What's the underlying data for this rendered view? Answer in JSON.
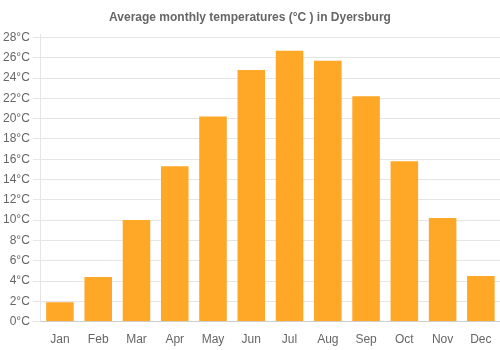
{
  "chart_data": {
    "type": "bar",
    "title": "Average monthly temperatures (°C ) in Dyersburg",
    "categories": [
      "Jan",
      "Feb",
      "Mar",
      "Apr",
      "May",
      "Jun",
      "Jul",
      "Aug",
      "Sep",
      "Oct",
      "Nov",
      "Dec"
    ],
    "values": [
      1.9,
      4.4,
      10.0,
      15.3,
      20.2,
      24.8,
      26.7,
      25.7,
      22.2,
      15.8,
      10.2,
      4.5
    ],
    "color": "#FFA726",
    "ylim": [
      0,
      28.3
    ],
    "yticks": [
      {
        "value": 0,
        "label": "0°C"
      },
      {
        "value": 2,
        "label": "2°C"
      },
      {
        "value": 4,
        "label": "4°C"
      },
      {
        "value": 6,
        "label": "6°C"
      },
      {
        "value": 8,
        "label": "8°C"
      },
      {
        "value": 10,
        "label": "10°C"
      },
      {
        "value": 12,
        "label": "12°C"
      },
      {
        "value": 14,
        "label": "14°C"
      },
      {
        "value": 16,
        "label": "16°C"
      },
      {
        "value": 18,
        "label": "18°C"
      },
      {
        "value": 20,
        "label": "20°C"
      },
      {
        "value": 22,
        "label": "22°C"
      },
      {
        "value": 24,
        "label": "24°C"
      },
      {
        "value": 26,
        "label": "26°C"
      },
      {
        "value": 28,
        "label": "28°C"
      }
    ],
    "grid": true
  }
}
